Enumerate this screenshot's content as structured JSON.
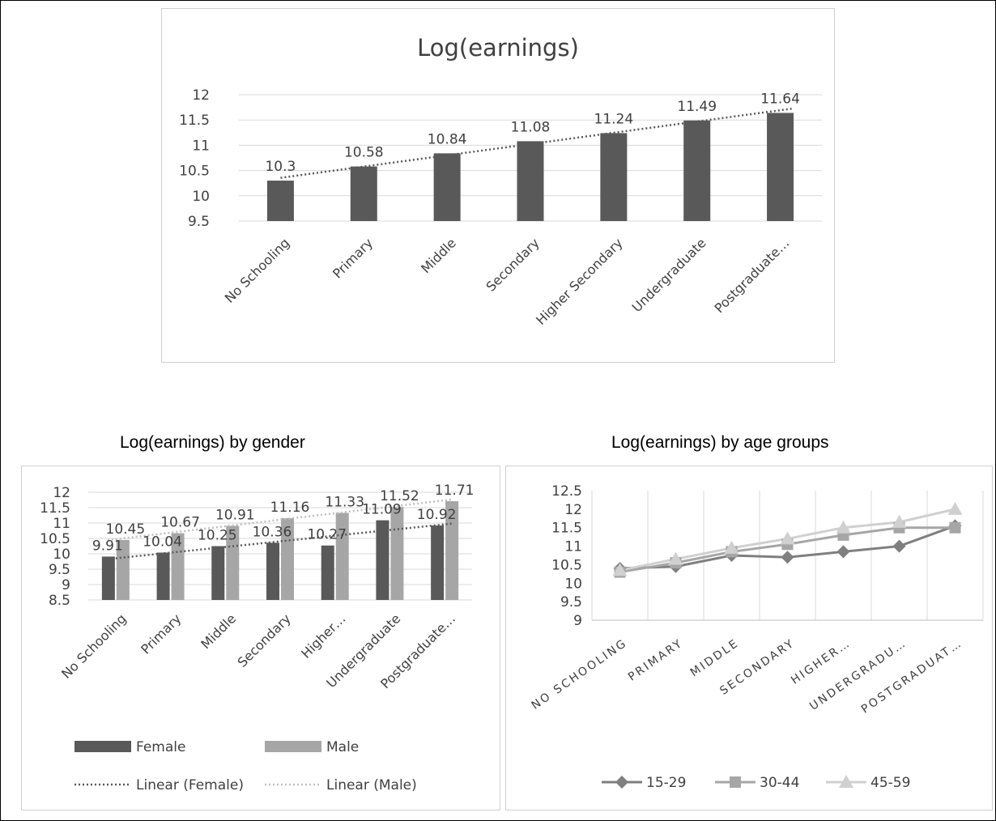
{
  "captions": {
    "gender": "Log(earnings) by gender",
    "age": "Log(earnings) by age groups"
  },
  "chart_data": [
    {
      "id": "overall",
      "type": "bar",
      "title": "Log(earnings)",
      "categories": [
        "No Schooling",
        "Primary",
        "Middle",
        "Secondary",
        "Higher Secondary",
        "Undergraduate",
        "Postgraduate…"
      ],
      "values": [
        10.3,
        10.58,
        10.84,
        11.08,
        11.24,
        11.49,
        11.64
      ],
      "data_labels": [
        "10.3",
        "10.58",
        "10.84",
        "11.08",
        "11.24",
        "11.49",
        "11.64"
      ],
      "ylim": [
        9.5,
        12
      ],
      "yticks": [
        "9.5",
        "10",
        "10.5",
        "11",
        "11.5",
        "12"
      ],
      "trendline": "linear",
      "grid": true,
      "colors": {
        "bar": "#595959",
        "trend": "#595959",
        "grid": "#d9d9d9",
        "text": "#404040"
      }
    },
    {
      "id": "gender",
      "type": "bar",
      "categories": [
        "No Schooling",
        "Primary",
        "Middle",
        "Secondary",
        "Higher…",
        "Undergraduate",
        "Postgraduate…"
      ],
      "series": [
        {
          "name": "Female",
          "values": [
            9.91,
            10.04,
            10.25,
            10.36,
            10.27,
            11.09,
            10.92
          ],
          "labels": [
            "9.91",
            "10.04",
            "10.25",
            "10.36",
            "10.27",
            "11.09",
            "10.92"
          ],
          "color": "#595959"
        },
        {
          "name": "Male",
          "values": [
            10.45,
            10.67,
            10.91,
            11.16,
            11.33,
            11.52,
            11.71
          ],
          "labels": [
            "10.45",
            "10.67",
            "10.91",
            "11.16",
            "11.33",
            "11.52",
            "11.71"
          ],
          "color": "#a6a6a6"
        }
      ],
      "trendlines": [
        {
          "name": "Linear (Female)",
          "series": 0,
          "color": "#595959"
        },
        {
          "name": "Linear (Male)",
          "series": 1,
          "color": "#bfbfbf"
        }
      ],
      "ylim": [
        8.5,
        12
      ],
      "yticks": [
        "8.5",
        "9",
        "9.5",
        "10",
        "10.5",
        "11",
        "11.5",
        "12"
      ],
      "legend": "bottom",
      "grid": true
    },
    {
      "id": "age",
      "type": "line",
      "categories": [
        "NO SCHOOLING",
        "PRIMARY",
        "MIDDLE",
        "SECONDARY",
        "HIGHER…",
        "UNDERGRADU…",
        "POSTGRADUAT…"
      ],
      "series": [
        {
          "name": "15-29",
          "marker": "diamond",
          "color": "#7f7f7f",
          "values": [
            10.4,
            10.45,
            10.75,
            10.7,
            10.85,
            11.0,
            11.55
          ]
        },
        {
          "name": "30-44",
          "marker": "square",
          "color": "#a6a6a6",
          "values": [
            10.3,
            10.55,
            10.85,
            11.05,
            11.3,
            11.5,
            11.5
          ]
        },
        {
          "name": "45-59",
          "marker": "triangle",
          "color": "#d0d0d0",
          "values": [
            10.35,
            10.65,
            10.95,
            11.2,
            11.5,
            11.65,
            12.0
          ]
        }
      ],
      "ylim": [
        9,
        12.5
      ],
      "yticks": [
        "9",
        "9.5",
        "10",
        "10.5",
        "11",
        "11.5",
        "12",
        "12.5"
      ],
      "legend": "bottom",
      "grid": "vertical"
    }
  ]
}
